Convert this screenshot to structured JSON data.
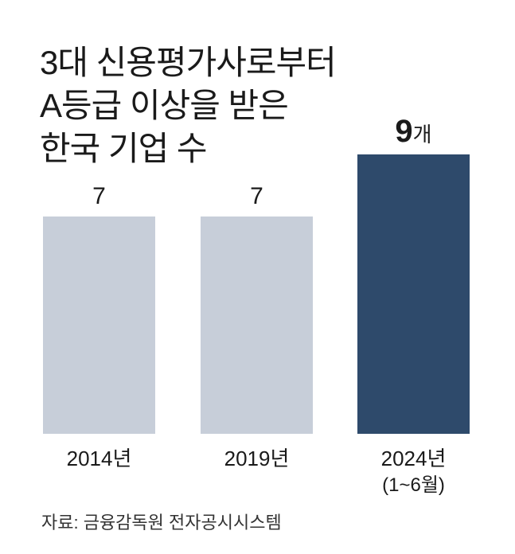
{
  "title_lines": [
    "3대 신용평가사로부터",
    "A등급 이상을 받은",
    "한국 기업 수"
  ],
  "source": "자료: 금융감독원 전자공시시스템",
  "colors": {
    "past": "#c7ced9",
    "highlight": "#2e4a6b",
    "text": "#1a1a1a"
  },
  "chart_data": {
    "type": "bar",
    "categories": [
      "2014년",
      "2019년",
      "2024년"
    ],
    "category_sublabels": [
      "",
      "",
      "(1~6월)"
    ],
    "values": [
      7,
      7,
      9
    ],
    "data_labels": [
      "7",
      "7",
      "9"
    ],
    "data_label_units": [
      "",
      "",
      "개"
    ],
    "highlight_index": 2,
    "title": "3대 신용평가사로부터 A등급 이상을 받은 한국 기업 수",
    "xlabel": "",
    "ylabel": "",
    "grid": false,
    "legend": "none"
  }
}
